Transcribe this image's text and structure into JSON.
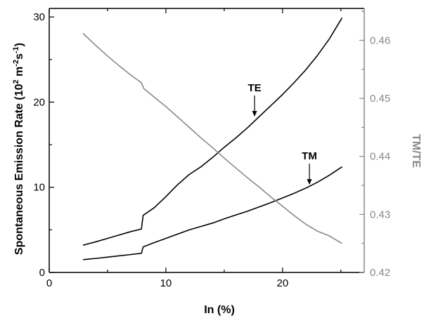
{
  "chart_data": {
    "type": "line",
    "xlabel": "In (%)",
    "ylabel_left": "Spontaneous Emission Rate (10",
    "ylabel_left_sup1": "2",
    "ylabel_left_mid": " m",
    "ylabel_left_sup2": "-2",
    "ylabel_left_mid2": "s",
    "ylabel_left_sup3": "-1",
    "ylabel_left_end": ")",
    "ylabel_right": "TM/TE",
    "xlim": [
      0,
      27
    ],
    "ylim_left": [
      0,
      31
    ],
    "ylim_right": [
      0.42,
      0.4655
    ],
    "x_ticks": [
      0,
      10,
      20
    ],
    "y_ticks_left": [
      0,
      10,
      20,
      30
    ],
    "y_ticks_right": [
      0.42,
      0.43,
      0.44,
      0.45,
      0.46
    ],
    "y_tick_labels_right": [
      "0.42",
      "0.43",
      "0.44",
      "0.45",
      "0.46"
    ],
    "colors": {
      "left_series": "#000000",
      "right_series": "#888888",
      "right_axis": "#888888"
    },
    "series": [
      {
        "name": "TE",
        "axis": "left",
        "x": [
          2.9,
          4,
          5,
          6,
          7,
          7.9,
          8.05,
          9,
          10,
          11,
          12,
          13,
          14,
          15,
          16,
          17,
          18,
          19,
          20,
          21,
          22,
          23,
          24,
          25.1
        ],
        "values": [
          3.2,
          3.6,
          4.0,
          4.4,
          4.8,
          5.1,
          6.7,
          7.6,
          8.9,
          10.3,
          11.5,
          12.4,
          13.5,
          14.7,
          15.8,
          17.0,
          18.3,
          19.6,
          20.9,
          22.3,
          23.8,
          25.5,
          27.4,
          29.9
        ]
      },
      {
        "name": "TM",
        "axis": "left",
        "x": [
          2.9,
          4,
          5,
          6,
          7,
          7.9,
          8.05,
          9,
          10,
          11,
          12,
          13,
          14,
          15,
          16,
          17,
          18,
          19,
          20,
          21,
          22,
          23,
          24,
          25.1
        ],
        "values": [
          1.5,
          1.65,
          1.8,
          1.95,
          2.1,
          2.25,
          3.0,
          3.5,
          4.0,
          4.5,
          5.0,
          5.4,
          5.8,
          6.3,
          6.75,
          7.2,
          7.7,
          8.2,
          8.75,
          9.3,
          9.9,
          10.6,
          11.4,
          12.4
        ]
      },
      {
        "name": "TM/TE",
        "axis": "right",
        "x": [
          2.9,
          4,
          5,
          6,
          7,
          7.9,
          8.1,
          9,
          10,
          11,
          12,
          13,
          14,
          15,
          16,
          17,
          18,
          19,
          20,
          21,
          22,
          23,
          24,
          25.1
        ],
        "values": [
          0.4612,
          0.4591,
          0.4573,
          0.4556,
          0.454,
          0.4527,
          0.4517,
          0.4502,
          0.4486,
          0.4468,
          0.445,
          0.4432,
          0.4415,
          0.4397,
          0.438,
          0.4363,
          0.4347,
          0.433,
          0.4314,
          0.4298,
          0.4283,
          0.4271,
          0.4263,
          0.425
        ]
      }
    ],
    "annotations": [
      {
        "label": "TE",
        "at_x": 17.6,
        "at_y": 18.3
      },
      {
        "label": "TM",
        "at_x": 22.3,
        "at_y": 10.3
      }
    ]
  }
}
